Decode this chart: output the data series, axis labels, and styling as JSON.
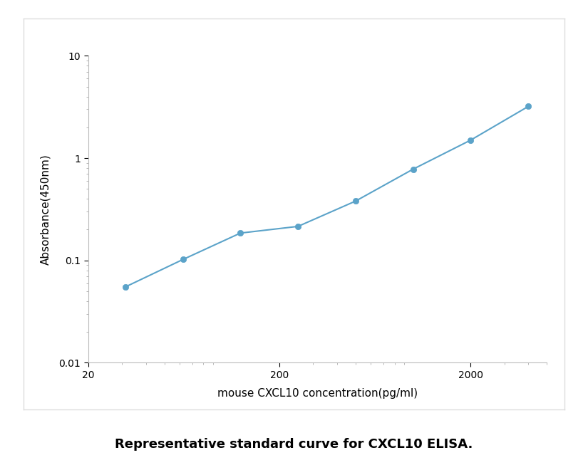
{
  "x_values": [
    31.25,
    62.5,
    125,
    250,
    500,
    1000,
    2000,
    4000
  ],
  "y_values": [
    0.055,
    0.102,
    0.185,
    0.215,
    0.38,
    0.78,
    1.5,
    3.2
  ],
  "line_color": "#5ba3c9",
  "marker_color": "#5ba3c9",
  "marker_size": 6,
  "line_width": 1.5,
  "xlabel": "mouse CXCL10 concentration(pg/ml)",
  "ylabel": "Absorbance(450nm)",
  "xlim_log": [
    1.3,
    3.8
  ],
  "ylim": [
    0.01,
    10
  ],
  "xticks": [
    20,
    200,
    2000
  ],
  "yticks": [
    0.01,
    0.1,
    1,
    10
  ],
  "caption": "Representative standard curve for CXCL10 ELISA.",
  "caption_fontsize": 13,
  "axis_label_fontsize": 11,
  "tick_fontsize": 10,
  "figure_bg": "#ffffff",
  "axes_bg": "#ffffff",
  "border_color": "#cccccc",
  "spine_color": "#bbbbbb",
  "minor_tick_color": "#aaaaaa",
  "outer_box_color": "#dddddd"
}
